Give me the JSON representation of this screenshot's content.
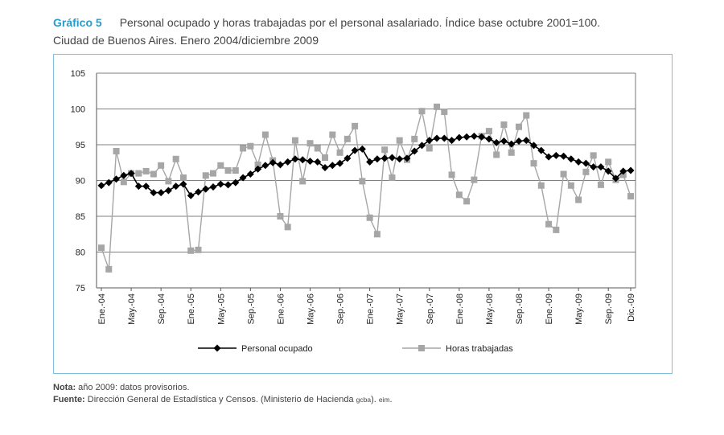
{
  "header": {
    "label": "Gráfico 5",
    "title": "Personal ocupado y horas trabajadas por el personal asalariado. Índice base octubre 2001=100.",
    "subtitle": "Ciudad de Buenos Aires. Enero 2004/diciembre 2009"
  },
  "footer": {
    "note_label": "Nota:",
    "note_text": "año 2009: datos provisorios.",
    "source_label": "Fuente:",
    "source_text": "Dirección General de Estadística y Censos. (Ministerio de Hacienda ",
    "source_sc1": "gcba",
    "source_mid": "). ",
    "source_sc2": "eim",
    "source_end": "."
  },
  "chart_data": {
    "type": "line",
    "ylim": [
      75,
      105
    ],
    "yticks": [
      75,
      80,
      85,
      90,
      95,
      100,
      105
    ],
    "grid": true,
    "legend_position": "bottom",
    "x_tick_labels": [
      {
        "index": 0,
        "label": "Ene.-04"
      },
      {
        "index": 4,
        "label": "May.-04"
      },
      {
        "index": 8,
        "label": "Sep.-04"
      },
      {
        "index": 12,
        "label": "Ene.-05"
      },
      {
        "index": 16,
        "label": "May.-05"
      },
      {
        "index": 20,
        "label": "Sep.-05"
      },
      {
        "index": 24,
        "label": "Ene.-06"
      },
      {
        "index": 28,
        "label": "May.-06"
      },
      {
        "index": 32,
        "label": "Sep.-06"
      },
      {
        "index": 36,
        "label": "Ene.-07"
      },
      {
        "index": 40,
        "label": "May.-07"
      },
      {
        "index": 44,
        "label": "Sep.-07"
      },
      {
        "index": 48,
        "label": "Ene.-08"
      },
      {
        "index": 52,
        "label": "May.-08"
      },
      {
        "index": 56,
        "label": "Sep.-08"
      },
      {
        "index": 60,
        "label": "Ene.-09"
      },
      {
        "index": 64,
        "label": "May.-09"
      },
      {
        "index": 68,
        "label": "Sep.-09"
      },
      {
        "index": 71,
        "label": "Dic.-09"
      }
    ],
    "series": [
      {
        "name": "Personal ocupado",
        "color": "#000000",
        "marker": "diamond",
        "values": [
          89.3,
          89.7,
          90.2,
          90.7,
          91.0,
          89.2,
          89.2,
          88.3,
          88.3,
          88.6,
          89.2,
          89.5,
          87.9,
          88.4,
          88.8,
          89.1,
          89.5,
          89.4,
          89.7,
          90.4,
          90.9,
          91.6,
          92.1,
          92.5,
          92.2,
          92.6,
          93.0,
          92.9,
          92.7,
          92.6,
          91.8,
          92.1,
          92.4,
          93.1,
          94.2,
          94.4,
          92.6,
          93.0,
          93.1,
          93.2,
          93.0,
          93.1,
          94.1,
          94.9,
          95.6,
          95.9,
          95.9,
          95.6,
          96.0,
          96.1,
          96.2,
          96.1,
          95.8,
          95.3,
          95.5,
          95.1,
          95.5,
          95.6,
          94.9,
          94.2,
          93.3,
          93.5,
          93.4,
          93.0,
          92.6,
          92.4,
          91.9,
          91.9,
          91.3,
          90.3,
          91.3,
          91.4
        ]
      },
      {
        "name": "Horas trabajadas",
        "color": "#a6a6a6",
        "marker": "square",
        "values": [
          80.6,
          77.6,
          94.1,
          89.8,
          91.0,
          91.0,
          91.3,
          90.9,
          92.1,
          89.9,
          93.0,
          90.4,
          80.2,
          80.3,
          90.7,
          91.0,
          92.1,
          91.4,
          91.4,
          94.5,
          94.8,
          92.2,
          96.4,
          92.8,
          85.0,
          83.5,
          95.6,
          89.9,
          95.2,
          94.5,
          93.2,
          96.4,
          93.9,
          95.8,
          97.6,
          89.9,
          84.8,
          82.5,
          94.3,
          90.4,
          95.6,
          92.9,
          95.8,
          99.7,
          94.5,
          100.3,
          99.6,
          90.8,
          88.0,
          87.1,
          90.1,
          96.2,
          96.9,
          93.6,
          97.8,
          93.9,
          97.5,
          99.1,
          92.4,
          89.3,
          83.9,
          83.1,
          90.9,
          89.3,
          87.3,
          91.2,
          93.5,
          89.4,
          92.6,
          90.1,
          90.8,
          87.8
        ]
      }
    ]
  }
}
